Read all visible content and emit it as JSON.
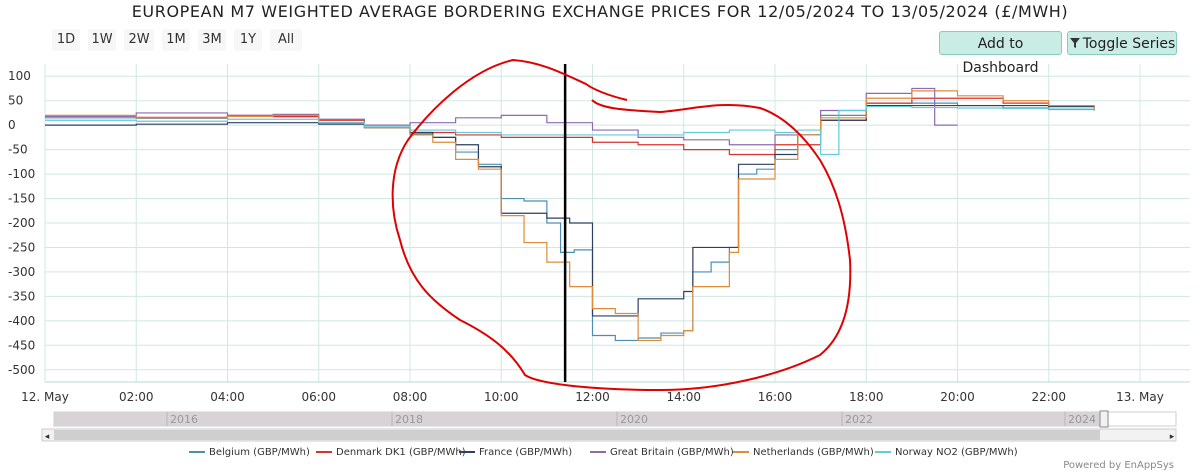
{
  "toolbar": {
    "range_buttons": [
      "1D",
      "1W",
      "2W",
      "1M",
      "3M",
      "1Y",
      "All"
    ],
    "add_dashboard": "Add to Dashboard",
    "toggle_series": "Toggle Series"
  },
  "powered_by": "Powered by EnAppSys",
  "navigator": {
    "years": [
      "2016",
      "2018",
      "2020",
      "2022",
      "2024"
    ],
    "left_arrow": "◂",
    "right_arrow": "▸"
  },
  "chart_data": {
    "type": "line",
    "title": "EUROPEAN M7 WEIGHTED AVERAGE BORDERING EXCHANGE PRICES FOR 12/05/2024 TO 13/05/2024 (£/MWH)",
    "ylim": [
      -525,
      125
    ],
    "xlim": [
      0,
      24
    ],
    "yticks": [
      100,
      50,
      0,
      -50,
      -100,
      -150,
      -200,
      -250,
      -300,
      -350,
      -400,
      -450,
      -500
    ],
    "xticks": [
      {
        "x": 0,
        "label": "12. May"
      },
      {
        "x": 2,
        "label": "02:00"
      },
      {
        "x": 4,
        "label": "04:00"
      },
      {
        "x": 6,
        "label": "06:00"
      },
      {
        "x": 8,
        "label": "08:00"
      },
      {
        "x": 10,
        "label": "10:00"
      },
      {
        "x": 12,
        "label": "12:00"
      },
      {
        "x": 14,
        "label": "14:00"
      },
      {
        "x": 16,
        "label": "16:00"
      },
      {
        "x": 18,
        "label": "18:00"
      },
      {
        "x": 20,
        "label": "20:00"
      },
      {
        "x": 22,
        "label": "22:00"
      },
      {
        "x": 24,
        "label": "13. May"
      }
    ],
    "current_time_marker": 11.4,
    "series": [
      {
        "name": "Belgium (GBP/MWh)",
        "color": "#4a8fb3",
        "points": [
          [
            0,
            15
          ],
          [
            2,
            14
          ],
          [
            4,
            18
          ],
          [
            5,
            17
          ],
          [
            6,
            5
          ],
          [
            7,
            -5
          ],
          [
            8,
            -18
          ],
          [
            8.5,
            -25
          ],
          [
            9,
            -55
          ],
          [
            9.5,
            -80
          ],
          [
            10,
            -150
          ],
          [
            10.5,
            -155
          ],
          [
            11,
            -200
          ],
          [
            11.3,
            -260
          ],
          [
            11.6,
            -255
          ],
          [
            12,
            -430
          ],
          [
            12.5,
            -440
          ],
          [
            13,
            -435
          ],
          [
            13.5,
            -425
          ],
          [
            14,
            -420
          ],
          [
            14.2,
            -300
          ],
          [
            14.6,
            -280
          ],
          [
            15,
            -250
          ],
          [
            15.2,
            -100
          ],
          [
            15.6,
            -90
          ],
          [
            16,
            -50
          ],
          [
            16.5,
            -20
          ],
          [
            17,
            20
          ],
          [
            18,
            45
          ],
          [
            19,
            45
          ],
          [
            20,
            40
          ],
          [
            21,
            35
          ],
          [
            22,
            32
          ],
          [
            23,
            30
          ]
        ]
      },
      {
        "name": "Denmark DK1 (GBP/MWh)",
        "color": "#d9332b",
        "points": [
          [
            0,
            18
          ],
          [
            2,
            16
          ],
          [
            4,
            20
          ],
          [
            5,
            18
          ],
          [
            6,
            10
          ],
          [
            7,
            0
          ],
          [
            8,
            -15
          ],
          [
            9,
            -20
          ],
          [
            10,
            -25
          ],
          [
            11,
            -25
          ],
          [
            12,
            -35
          ],
          [
            13,
            -40
          ],
          [
            14,
            -50
          ],
          [
            15,
            -60
          ],
          [
            16,
            -40
          ],
          [
            17,
            10
          ],
          [
            18,
            45
          ],
          [
            19,
            55
          ],
          [
            20,
            55
          ],
          [
            21,
            45
          ],
          [
            22,
            38
          ],
          [
            23,
            35
          ]
        ]
      },
      {
        "name": "France (GBP/MWh)",
        "color": "#2d3f62",
        "points": [
          [
            0,
            0
          ],
          [
            2,
            2
          ],
          [
            4,
            5
          ],
          [
            5,
            5
          ],
          [
            6,
            2
          ],
          [
            7,
            -5
          ],
          [
            8,
            -15
          ],
          [
            8.5,
            -25
          ],
          [
            9,
            -40
          ],
          [
            9.5,
            -85
          ],
          [
            10,
            -180
          ],
          [
            11,
            -190
          ],
          [
            11.5,
            -200
          ],
          [
            12,
            -390
          ],
          [
            12.5,
            -390
          ],
          [
            13,
            -355
          ],
          [
            13.5,
            -355
          ],
          [
            14,
            -340
          ],
          [
            14.2,
            -250
          ],
          [
            15,
            -250
          ],
          [
            15.2,
            -80
          ],
          [
            16,
            -60
          ],
          [
            16.5,
            -20
          ],
          [
            17,
            10
          ],
          [
            18,
            40
          ],
          [
            19,
            40
          ],
          [
            20,
            40
          ],
          [
            21,
            40
          ],
          [
            22,
            38
          ],
          [
            23,
            35
          ]
        ]
      },
      {
        "name": "Great Britain (GBP/MWh)",
        "color": "#8c6bb0",
        "points": [
          [
            0,
            18
          ],
          [
            2,
            25
          ],
          [
            4,
            20
          ],
          [
            5,
            22
          ],
          [
            6,
            12
          ],
          [
            7,
            0
          ],
          [
            8,
            5
          ],
          [
            9,
            15
          ],
          [
            10,
            20
          ],
          [
            11,
            5
          ],
          [
            12,
            -10
          ],
          [
            13,
            -25
          ],
          [
            14,
            -30
          ],
          [
            15,
            -40
          ],
          [
            16,
            -20
          ],
          [
            17,
            30
          ],
          [
            18,
            65
          ],
          [
            19,
            75
          ],
          [
            19.5,
            0
          ],
          [
            20,
            0
          ]
        ]
      },
      {
        "name": "Netherlands (GBP/MWh)",
        "color": "#e08b3a",
        "points": [
          [
            0,
            20
          ],
          [
            2,
            15
          ],
          [
            4,
            18
          ],
          [
            5,
            20
          ],
          [
            6,
            5
          ],
          [
            7,
            -5
          ],
          [
            8,
            -20
          ],
          [
            8.5,
            -35
          ],
          [
            9,
            -70
          ],
          [
            9.5,
            -90
          ],
          [
            10,
            -185
          ],
          [
            10.5,
            -240
          ],
          [
            11,
            -280
          ],
          [
            11.5,
            -330
          ],
          [
            12,
            -375
          ],
          [
            12.5,
            -385
          ],
          [
            13,
            -440
          ],
          [
            13.5,
            -430
          ],
          [
            14,
            -420
          ],
          [
            14.2,
            -330
          ],
          [
            15,
            -260
          ],
          [
            15.2,
            -110
          ],
          [
            16,
            -70
          ],
          [
            16.5,
            -20
          ],
          [
            17,
            15
          ],
          [
            18,
            55
          ],
          [
            19,
            70
          ],
          [
            20,
            60
          ],
          [
            21,
            50
          ],
          [
            22,
            40
          ],
          [
            23,
            32
          ]
        ]
      },
      {
        "name": "Norway NO2 (GBP/MWh)",
        "color": "#66c9d6",
        "points": [
          [
            0,
            10
          ],
          [
            2,
            8
          ],
          [
            4,
            12
          ],
          [
            5,
            12
          ],
          [
            6,
            5
          ],
          [
            7,
            -2
          ],
          [
            8,
            -10
          ],
          [
            9,
            -15
          ],
          [
            10,
            -20
          ],
          [
            11,
            -20
          ],
          [
            12,
            -20
          ],
          [
            13,
            -20
          ],
          [
            14,
            -15
          ],
          [
            15,
            -10
          ],
          [
            16,
            -15
          ],
          [
            16.5,
            -10
          ],
          [
            17,
            -60
          ],
          [
            17.4,
            30
          ],
          [
            18,
            38
          ],
          [
            19,
            36
          ],
          [
            20,
            35
          ],
          [
            21,
            34
          ],
          [
            22,
            33
          ],
          [
            23,
            32
          ]
        ]
      }
    ]
  }
}
